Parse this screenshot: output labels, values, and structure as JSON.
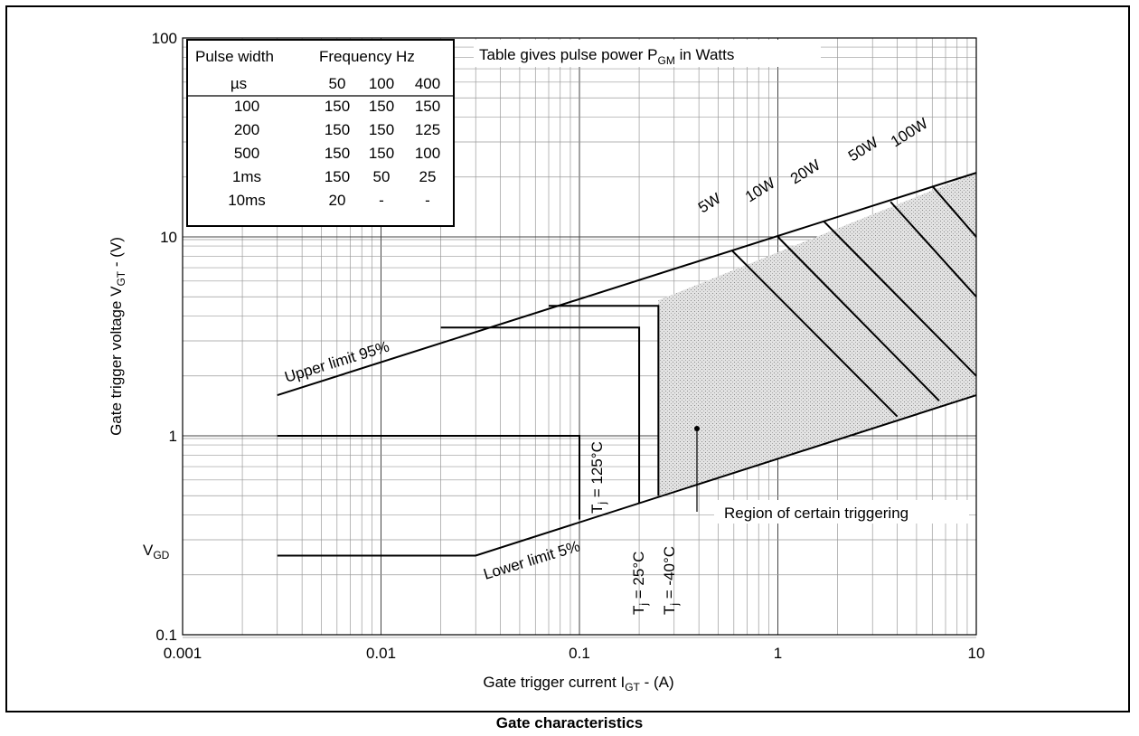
{
  "caption": "Gate characteristics",
  "chart_data": {
    "type": "line",
    "xscale": "log",
    "yscale": "log",
    "xlim": [
      0.001,
      10
    ],
    "ylim": [
      0.1,
      100
    ],
    "xlabel": "Gate trigger current I",
    "xlabel_sub": "GT",
    "xlabel_tail": " - (A)",
    "ylabel": "Gate trigger voltage V",
    "ylabel_sub": "GT",
    "ylabel_tail": " - (V)",
    "x_ticks": [
      {
        "value": 0.001,
        "label": "0.001"
      },
      {
        "value": 0.01,
        "label": "0.01"
      },
      {
        "value": 0.1,
        "label": "0.1"
      },
      {
        "value": 1,
        "label": "1"
      },
      {
        "value": 10,
        "label": "10"
      }
    ],
    "y_ticks": [
      {
        "value": 0.1,
        "label": "0.1"
      },
      {
        "value": 1,
        "label": "1"
      },
      {
        "value": 10,
        "label": "10"
      },
      {
        "value": 100,
        "label": "100"
      }
    ],
    "vgd": {
      "label": "V",
      "sub": "GD",
      "value": 0.25
    },
    "series": [
      {
        "name": "Upper limit 95%",
        "points": [
          [
            0.003,
            1.6
          ],
          [
            10,
            21
          ]
        ]
      },
      {
        "name": "Lower limit 5%",
        "points": [
          [
            0.003,
            0.25
          ],
          [
            0.03,
            0.25
          ],
          [
            10,
            1.6
          ]
        ]
      },
      {
        "name": "T_j = 125°C",
        "points": [
          [
            0.003,
            1.0
          ],
          [
            0.1,
            1.0
          ],
          [
            0.1,
            0.38
          ]
        ]
      },
      {
        "name": "T_j = 25°C",
        "points": [
          [
            0.02,
            3.5
          ],
          [
            0.2,
            3.5
          ],
          [
            0.2,
            0.46
          ]
        ]
      },
      {
        "name": "T_j = -40°C",
        "points": [
          [
            0.07,
            4.5
          ],
          [
            0.25,
            4.5
          ],
          [
            0.25,
            0.5
          ]
        ]
      }
    ],
    "power_lines": [
      {
        "label": "5W",
        "points": [
          [
            0.59,
            8.5
          ],
          [
            4.0,
            1.25
          ]
        ]
      },
      {
        "label": "10W",
        "points": [
          [
            1.0,
            10.0
          ],
          [
            6.5,
            1.5
          ]
        ]
      },
      {
        "label": "20W",
        "points": [
          [
            1.7,
            12.0
          ],
          [
            10,
            2.0
          ]
        ]
      },
      {
        "label": "50W",
        "points": [
          [
            3.7,
            15.0
          ],
          [
            10,
            5.0
          ]
        ]
      },
      {
        "label": "100W",
        "points": [
          [
            6.0,
            18.0
          ],
          [
            10,
            10.0
          ]
        ]
      }
    ],
    "region_polygon": [
      [
        0.25,
        4.8
      ],
      [
        10,
        21
      ],
      [
        10,
        1.6
      ],
      [
        0.25,
        0.5
      ]
    ],
    "labels": {
      "upper": "Upper limit 95%",
      "lower": "Lower limit 5%",
      "tj125_a": "T",
      "tj125_b": "j",
      "tj125_c": " = 125°C",
      "tj25_a": "T",
      "tj25_b": "j",
      "tj25_c": " = 25°C",
      "tj40_a": "T",
      "tj40_b": "j",
      "tj40_c": " = -40°C",
      "region": "Region of certain triggering",
      "table_note_a": "Table gives pulse power P",
      "table_note_b": "GM",
      "table_note_c": " in Watts"
    },
    "pulse_table": {
      "header1_col": "Pulse width",
      "header1_freq": "Frequency Hz",
      "header2_unit": "µs",
      "header2_freqs": [
        "50",
        "100",
        "400"
      ],
      "rows": [
        [
          "100",
          "150",
          "150",
          "150"
        ],
        [
          "200",
          "150",
          "150",
          "125"
        ],
        [
          "500",
          "150",
          "150",
          "100"
        ],
        [
          "1ms",
          "150",
          "50",
          "25"
        ],
        [
          "10ms",
          "20",
          "-",
          "-"
        ]
      ]
    },
    "grid": true
  }
}
